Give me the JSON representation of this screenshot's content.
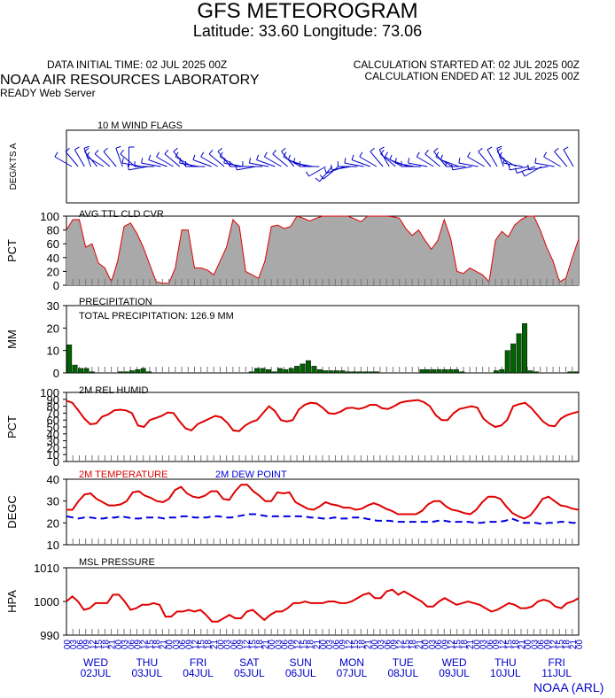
{
  "header": {
    "title": "GFS METEOROGRAM",
    "subtitle": "Latitude: 33.60 Longitude:  73.06",
    "data_initial_time": "DATA INITIAL TIME: 02 JUL 2025 00Z",
    "calc_started": "CALCULATION STARTED AT: 02 JUL 2025 00Z",
    "calc_ended": "CALCULATION ENDED AT: 12 JUL 2025 00Z",
    "lab": "NOAA AIR RESOURCES LABORATORY",
    "server": "READY Web Server",
    "credit": "NOAA (ARL)"
  },
  "colors": {
    "cloud_fill": "#a9a9a9",
    "cloud_line": "#e00000",
    "precip_bar": "#006400",
    "series_red": "#e00000",
    "dew_blue": "#0000e0",
    "wind_blue": "#0000c8",
    "date_blue": "#0000c8"
  },
  "chart_data": [
    {
      "type": "wind_barbs",
      "title": "10 M  WIND FLAGS",
      "ylabel": "DEG/KTS  A",
      "direction_deg": [
        300,
        320,
        330,
        340,
        320,
        300,
        310,
        320,
        340,
        0,
        310,
        280,
        260,
        270,
        280,
        290,
        300,
        310,
        320,
        300,
        280,
        270,
        290,
        300,
        310,
        320,
        300,
        280,
        270,
        260,
        270,
        280,
        290,
        300,
        310,
        320,
        300,
        290,
        280,
        270,
        240,
        220,
        230,
        250,
        260,
        270,
        280,
        290,
        300,
        320,
        330,
        310,
        300,
        290,
        280,
        270,
        280,
        300,
        310,
        320,
        300,
        290,
        270,
        260,
        280,
        300,
        320,
        330,
        340,
        320,
        300,
        280,
        260,
        250,
        240,
        260,
        280,
        300,
        320,
        330
      ],
      "speed_kts": [
        6,
        5,
        5,
        4,
        6,
        7,
        8,
        5,
        4,
        3,
        6,
        7,
        8,
        9,
        7,
        6,
        5,
        6,
        7,
        8,
        6,
        5,
        4,
        5,
        6,
        7,
        8,
        6,
        5,
        4,
        5,
        6,
        7,
        8,
        6,
        5,
        4,
        5,
        6,
        7,
        6,
        5,
        7,
        8,
        9,
        6,
        5,
        4,
        5,
        6,
        7,
        8,
        6,
        5,
        4,
        5,
        6,
        7,
        8,
        6,
        5,
        4,
        5,
        6,
        7,
        8,
        9,
        7,
        6,
        5,
        6,
        7,
        8,
        6,
        5,
        4,
        5,
        6,
        7,
        8
      ]
    },
    {
      "type": "area",
      "title": "AVG TTL CLD CVR",
      "ylabel": "PCT",
      "ylim": [
        0,
        100
      ],
      "yticks": [
        0,
        20,
        40,
        60,
        80,
        100
      ],
      "values": [
        80,
        95,
        95,
        55,
        60,
        32,
        25,
        5,
        35,
        85,
        90,
        75,
        55,
        30,
        5,
        3,
        3,
        25,
        80,
        80,
        25,
        25,
        22,
        15,
        35,
        55,
        95,
        85,
        20,
        15,
        10,
        35,
        85,
        87,
        82,
        85,
        100,
        97,
        93,
        97,
        100,
        100,
        100,
        100,
        100,
        96,
        92,
        100,
        100,
        100,
        100,
        99,
        97,
        82,
        72,
        80,
        65,
        52,
        65,
        95,
        68,
        20,
        17,
        25,
        20,
        15,
        5,
        65,
        78,
        70,
        87,
        95,
        100,
        100,
        80,
        55,
        35,
        5,
        10,
        40,
        67
      ]
    },
    {
      "type": "bar",
      "title": "PRECIPITATION",
      "ylabel": "MM",
      "ylim": [
        0,
        30
      ],
      "yticks": [
        0,
        10,
        20,
        30
      ],
      "annotation": "TOTAL PRECIPITATION: 126.9 MM",
      "values": [
        12.5,
        3.5,
        2,
        2,
        0.5,
        0,
        0,
        0,
        0,
        0.5,
        0.5,
        1,
        1.5,
        2,
        0.5,
        0,
        0,
        0,
        0,
        0,
        0,
        0,
        0,
        0,
        0,
        0,
        0,
        0,
        0,
        0,
        0,
        0,
        0.5,
        2,
        2,
        1.5,
        0.5,
        2,
        1.5,
        2,
        3,
        4,
        5.5,
        3,
        1.5,
        1,
        1,
        1,
        1,
        0.5,
        0.5,
        0.5,
        0.5,
        0.5,
        0.5,
        0,
        0,
        0,
        0,
        0,
        0,
        0,
        1.5,
        1.5,
        1.5,
        1.5,
        1.5,
        1.5,
        1.5,
        0.5,
        0,
        0,
        0,
        0,
        0,
        1,
        1.5,
        10,
        13,
        17.5,
        22,
        1,
        0.5,
        0,
        0,
        0,
        0,
        0,
        0.5,
        0.5
      ]
    },
    {
      "type": "line",
      "title": "2M REL HUMID",
      "ylabel": "PCT",
      "ylim": [
        0,
        100
      ],
      "yticks": [
        0,
        10,
        20,
        30,
        40,
        50,
        60,
        70,
        80,
        90,
        100
      ],
      "values": [
        88,
        85,
        74,
        62,
        54,
        55,
        65,
        68,
        74,
        75,
        74,
        70,
        52,
        50,
        60,
        63,
        66,
        71,
        70,
        58,
        48,
        45,
        54,
        58,
        62,
        66,
        64,
        56,
        45,
        44,
        52,
        57,
        60,
        70,
        80,
        73,
        60,
        58,
        60,
        75,
        82,
        85,
        84,
        78,
        70,
        69,
        72,
        77,
        78,
        76,
        78,
        82,
        82,
        77,
        76,
        80,
        85,
        87,
        88,
        89,
        86,
        80,
        67,
        60,
        60,
        70,
        76,
        78,
        80,
        78,
        62,
        55,
        50,
        52,
        60,
        80,
        83,
        85,
        78,
        68,
        58,
        52,
        51,
        62,
        67,
        70,
        72
      ]
    },
    {
      "type": "line",
      "title": "2M TEMPERATURE",
      "title2": "2M   DEW POINT",
      "ylabel": "DEGC",
      "ylim": [
        10,
        40
      ],
      "yticks": [
        10,
        20,
        30,
        40
      ],
      "series": [
        {
          "name": "2M TEMPERATURE",
          "values": [
            26,
            26,
            30,
            33,
            33.5,
            31,
            29.5,
            28,
            28,
            28.5,
            30,
            34,
            34.5,
            32.5,
            31.5,
            30,
            29.5,
            31,
            35,
            36.5,
            33.5,
            32,
            31.5,
            32.5,
            34.5,
            34.5,
            31,
            30.5,
            34.5,
            37.5,
            37.5,
            34.5,
            32.5,
            30,
            30,
            34,
            33.5,
            34,
            29.5,
            28,
            26.5,
            26,
            27.5,
            29.5,
            28.5,
            28,
            27,
            27,
            26,
            26.5,
            28,
            29,
            28,
            26.5,
            25.5,
            24,
            24,
            24,
            24,
            25.5,
            28.5,
            30,
            30,
            27.5,
            26,
            25.5,
            24.5,
            24,
            26,
            29.5,
            32,
            32,
            31,
            27.5,
            24.5,
            23,
            22,
            23.5,
            27,
            31,
            32,
            30,
            28,
            27.5,
            26.5,
            26
          ]
        },
        {
          "name": "2M   DEW POINT",
          "values": [
            23,
            22.5,
            22,
            22.5,
            22.5,
            22,
            22,
            22.5,
            22.5,
            23,
            22.5,
            22,
            22,
            22.5,
            22.5,
            22.5,
            22,
            22.5,
            22.5,
            23,
            23,
            22.5,
            22.5,
            22.5,
            23,
            23,
            22.5,
            22.5,
            23,
            23.5,
            24,
            24,
            23.5,
            23,
            23,
            23,
            23,
            23,
            23,
            23,
            22.5,
            22.5,
            22,
            22,
            22.5,
            22,
            22,
            22.5,
            22.5,
            22,
            21.5,
            21,
            21,
            21,
            20.5,
            20.5,
            20.5,
            20.5,
            20.5,
            20.5,
            20.5,
            21,
            21,
            20.5,
            20.5,
            20.5,
            20.5,
            20,
            20,
            20.5,
            20.5,
            20.5,
            21,
            22,
            21,
            20,
            20,
            20,
            19.5,
            20,
            20,
            20.5,
            20.5,
            20,
            20
          ]
        }
      ]
    },
    {
      "type": "line",
      "title": "MSL PRESSURE",
      "ylabel": "HPA",
      "ylim": [
        990,
        1010
      ],
      "yticks": [
        990,
        1000,
        1010
      ],
      "values": [
        1000,
        1001.5,
        1000,
        997.5,
        998,
        999.5,
        999.5,
        999.5,
        1002,
        1002,
        1000,
        997.5,
        998,
        999,
        999,
        999.5,
        999,
        995.5,
        995.5,
        997,
        997,
        997.5,
        997,
        997.5,
        996,
        994,
        994,
        995,
        996,
        995,
        995,
        997,
        997.5,
        996,
        994.5,
        996,
        997,
        997,
        998,
        999.5,
        999.5,
        1000,
        999.5,
        999.5,
        999.5,
        1000,
        1000,
        999.5,
        999.5,
        1000,
        1001,
        1002,
        1002.5,
        1001,
        1001,
        1003,
        1003.5,
        1002,
        1003,
        1002,
        1001,
        1000,
        998.5,
        998.5,
        1000,
        1001,
        1000,
        999,
        999.5,
        1000,
        999.5,
        999,
        998,
        997,
        997.5,
        998.5,
        999.5,
        999,
        998,
        998,
        998.5,
        1000,
        1000.5,
        1000,
        998.5,
        998,
        999.5,
        1000,
        1001
      ]
    }
  ],
  "xaxis": {
    "tick_hours": [
      "00",
      "03",
      "06",
      "09",
      "12",
      "15",
      "18",
      "21"
    ],
    "days": [
      {
        "dow": "WED",
        "date": "02JUL"
      },
      {
        "dow": "THU",
        "date": "03JUL"
      },
      {
        "dow": "FRI",
        "date": "04JUL"
      },
      {
        "dow": "SAT",
        "date": "05JUL"
      },
      {
        "dow": "SUN",
        "date": "06JUL"
      },
      {
        "dow": "MON",
        "date": "07JUL"
      },
      {
        "dow": "TUE",
        "date": "08JUL"
      },
      {
        "dow": "WED",
        "date": "09JUL"
      },
      {
        "dow": "THU",
        "date": "10JUL"
      },
      {
        "dow": "FRI",
        "date": "11JUL"
      }
    ],
    "last_tick": "00"
  }
}
